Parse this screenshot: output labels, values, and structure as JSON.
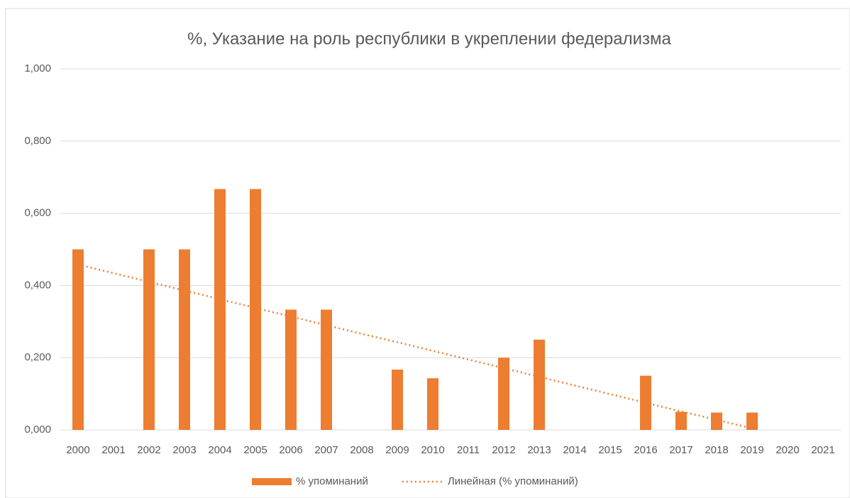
{
  "chart_data": {
    "type": "bar",
    "title": "%, Указание на роль республики в укреплении федерализма",
    "categories": [
      "2000",
      "2001",
      "2002",
      "2003",
      "2004",
      "2005",
      "2006",
      "2007",
      "2008",
      "2009",
      "2010",
      "2011",
      "2012",
      "2013",
      "2014",
      "2015",
      "2016",
      "2017",
      "2018",
      "2019",
      "2020",
      "2021"
    ],
    "series": [
      {
        "name": "% упоминаний",
        "type": "bar",
        "color": "#ed7d31",
        "values": [
          0.5,
          0,
          0.5,
          0.5,
          0.667,
          0.667,
          0.333,
          0.333,
          0,
          0.167,
          0.143,
          0,
          0.2,
          0.25,
          0,
          0,
          0.15,
          0.05,
          0.048,
          0.048,
          0,
          0
        ]
      },
      {
        "name": "Линейная (% упоминаний)",
        "type": "line",
        "dash": "dotted",
        "color": "#ed7d31",
        "values": [
          0.458,
          0.434,
          0.41,
          0.386,
          0.362,
          0.338,
          0.314,
          0.29,
          0.266,
          0.243,
          0.219,
          0.195,
          0.171,
          0.147,
          0.123,
          0.099,
          0.075,
          0.051,
          0.028,
          0.004,
          null,
          null
        ]
      }
    ],
    "ylim": [
      0,
      1
    ],
    "yticks": [
      {
        "value": 0,
        "label": "0,000"
      },
      {
        "value": 0.2,
        "label": "0,200"
      },
      {
        "value": 0.4,
        "label": "0,400"
      },
      {
        "value": 0.6,
        "label": "0,600"
      },
      {
        "value": 0.8,
        "label": "0,800"
      },
      {
        "value": 1,
        "label": "1,000"
      }
    ],
    "grid": true,
    "legend": "bottom"
  }
}
